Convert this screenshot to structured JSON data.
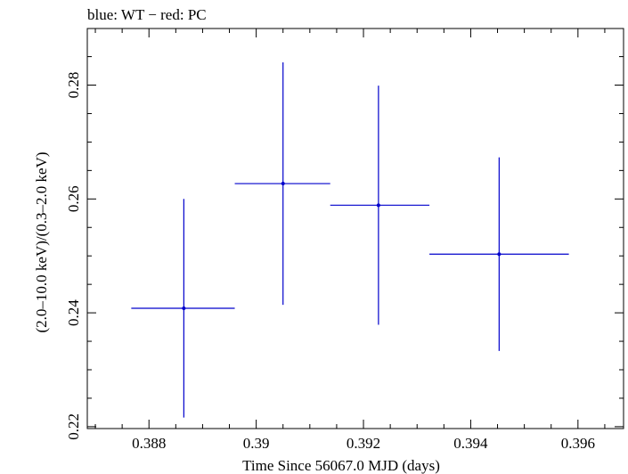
{
  "chart_data": {
    "type": "scatter",
    "title": "blue: WT − red: PC",
    "xlabel": "Time Since 56067.0 MJD (days)",
    "ylabel": "(2.0–10.0 keV)/(0.3–2.0 keV)",
    "xlim": [
      0.38685,
      0.39685
    ],
    "ylim": [
      0.21967,
      0.28994
    ],
    "x_ticks": [
      {
        "value": 0.388,
        "label": "0.388"
      },
      {
        "value": 0.39,
        "label": "0.39"
      },
      {
        "value": 0.392,
        "label": "0.392"
      },
      {
        "value": 0.394,
        "label": "0.394"
      },
      {
        "value": 0.396,
        "label": "0.396"
      }
    ],
    "y_ticks": [
      {
        "value": 0.22,
        "label": "0.22"
      },
      {
        "value": 0.24,
        "label": "0.24"
      },
      {
        "value": 0.26,
        "label": "0.26"
      },
      {
        "value": 0.28,
        "label": "0.28"
      }
    ],
    "x_minor_step": 0.0005,
    "y_minor_step": 0.005,
    "grid": false,
    "series": [
      {
        "name": "WT",
        "color": "#0000cc",
        "points": [
          {
            "x": 0.38865,
            "xerr_lo": 0.00098,
            "xerr_hi": 0.00095,
            "y": 0.2408,
            "yerr_lo": 0.0192,
            "yerr_hi": 0.0192
          },
          {
            "x": 0.3905,
            "xerr_lo": 0.0009,
            "xerr_hi": 0.00088,
            "y": 0.2627,
            "yerr_lo": 0.0213,
            "yerr_hi": 0.0213
          },
          {
            "x": 0.39228,
            "xerr_lo": 0.0009,
            "xerr_hi": 0.00095,
            "y": 0.2589,
            "yerr_lo": 0.021,
            "yerr_hi": 0.021
          },
          {
            "x": 0.39453,
            "xerr_lo": 0.0013,
            "xerr_hi": 0.0013,
            "y": 0.2503,
            "yerr_lo": 0.017,
            "yerr_hi": 0.017
          }
        ]
      }
    ]
  }
}
